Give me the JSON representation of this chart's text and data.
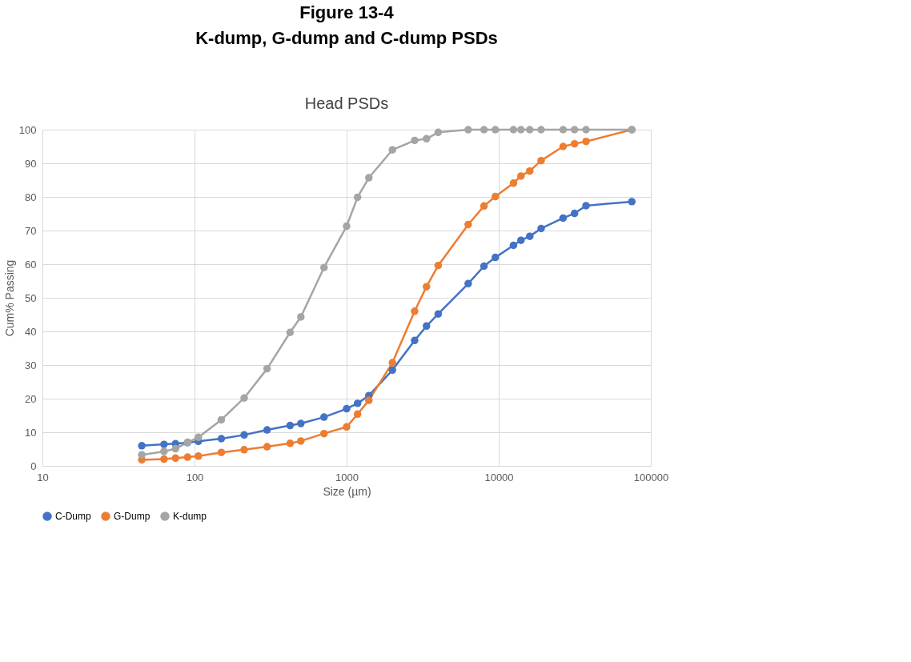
{
  "chart_data": {
    "type": "line",
    "title": "Figure 13-4",
    "subtitle": "K-dump, G-dump and C-dump PSDs",
    "annotations": [
      "Head PSDs"
    ],
    "xlabel": "Size (µm)",
    "ylabel": "Cum% Passing",
    "x": [
      45,
      63,
      75,
      90,
      106,
      150,
      212,
      300,
      425,
      500,
      710,
      1000,
      1180,
      1400,
      2000,
      2800,
      3350,
      4000,
      6300,
      8000,
      9500,
      12500,
      14000,
      16000,
      19000,
      26500,
      31500,
      37500,
      75000
    ],
    "series": [
      {
        "name": "C-Dump",
        "color": "#4472c4",
        "values": [
          6.0,
          6.4,
          6.6,
          6.9,
          7.3,
          8.1,
          9.2,
          10.7,
          12.0,
          12.6,
          14.5,
          17.0,
          18.6,
          20.9,
          28.5,
          37.3,
          41.6,
          45.2,
          54.2,
          59.4,
          62.0,
          65.6,
          67.1,
          68.3,
          70.6,
          73.7,
          75.1,
          77.4,
          78.6
        ]
      },
      {
        "name": "G-Dump",
        "color": "#ed7d31",
        "values": [
          1.8,
          2.0,
          2.3,
          2.6,
          2.9,
          4.0,
          4.8,
          5.7,
          6.7,
          7.4,
          9.6,
          11.6,
          15.4,
          19.5,
          30.7,
          46.0,
          53.3,
          59.6,
          71.8,
          77.3,
          80.1,
          84.1,
          86.2,
          87.7,
          90.8,
          95.0,
          95.8,
          96.5,
          100
        ]
      },
      {
        "name": "K-dump",
        "color": "#a5a5a5",
        "values": [
          3.3,
          4.3,
          5.1,
          7.0,
          8.5,
          13.7,
          20.2,
          28.9,
          39.7,
          44.3,
          59.0,
          71.3,
          79.9,
          85.7,
          94.0,
          96.8,
          97.3,
          99.2,
          100,
          100,
          100,
          100,
          100,
          100,
          100,
          100,
          100,
          100,
          100
        ]
      }
    ],
    "xlim": [
      10,
      100000
    ],
    "xticks": [
      10,
      100,
      1000,
      10000,
      100000
    ],
    "log": "x",
    "ylim": [
      0,
      100
    ],
    "yticks": [
      0,
      10,
      20,
      30,
      40,
      50,
      60,
      70,
      80,
      90,
      100
    ],
    "grid": true,
    "legend": "bottom",
    "marker": "circle",
    "line_style": "solid"
  }
}
